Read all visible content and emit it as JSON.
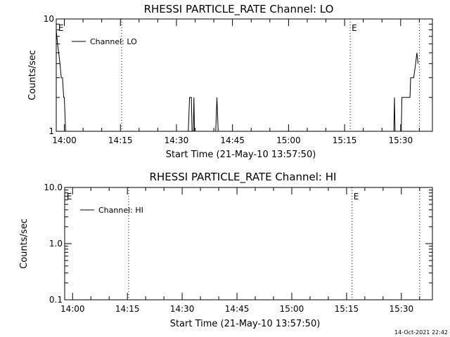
{
  "footer": {
    "timestamp": "14-Oct-2021 22:42"
  },
  "chart_data": [
    {
      "type": "line",
      "title": "RHESSI PARTICLE_RATE Channel: LO",
      "xlabel": "Start Time (21-May-10 13:57:50)",
      "ylabel": "Counts/sec",
      "y_scale": "log",
      "ylim": [
        1,
        10
      ],
      "y_ticks": [
        1,
        10
      ],
      "y_tick_labels": [
        "1",
        "10"
      ],
      "xlim": [
        "13:57:50",
        "15:38:30"
      ],
      "x_ticks": [
        "14:00",
        "14:15",
        "14:30",
        "14:45",
        "15:00",
        "15:15",
        "15:30"
      ],
      "legend": {
        "position": "top-left",
        "entries": [
          "Channel: LO"
        ]
      },
      "vertical_markers": [
        {
          "time": "13:58:00",
          "label": "E",
          "line": false
        },
        {
          "time": "14:15:20",
          "label": "",
          "line": true
        },
        {
          "time": "15:16:30",
          "label": "E",
          "line": true
        },
        {
          "time": "15:35:00",
          "label": "",
          "line": true
        }
      ],
      "series": [
        {
          "name": "Channel: LO",
          "points": [
            [
              "13:57:50",
              8
            ],
            [
              "13:58:10",
              6
            ],
            [
              "13:58:30",
              5
            ],
            [
              "13:58:50",
              4
            ],
            [
              "13:59:10",
              3
            ],
            [
              "13:59:30",
              3
            ],
            [
              "13:59:50",
              2
            ],
            [
              "14:00:00",
              2
            ],
            [
              "14:00:20",
              1
            ],
            [
              "14:33:10",
              1
            ],
            [
              "14:33:30",
              2
            ],
            [
              "14:34:00",
              2
            ],
            [
              "14:34:10",
              1
            ],
            [
              "14:34:30",
              1
            ],
            [
              "14:34:40",
              2
            ],
            [
              "14:34:50",
              1
            ],
            [
              "14:40:30",
              1
            ],
            [
              "14:40:50",
              2
            ],
            [
              "14:41:10",
              1
            ],
            [
              "15:28:10",
              1
            ],
            [
              "15:28:20",
              2
            ],
            [
              "15:28:30",
              1
            ],
            [
              "15:30:10",
              1
            ],
            [
              "15:30:20",
              2
            ],
            [
              "15:32:30",
              2
            ],
            [
              "15:32:40",
              3
            ],
            [
              "15:33:30",
              3
            ],
            [
              "15:34:00",
              4
            ],
            [
              "15:34:20",
              5
            ],
            [
              "15:34:40",
              4
            ]
          ]
        }
      ]
    },
    {
      "type": "line",
      "title": "RHESSI PARTICLE_RATE Channel: HI",
      "xlabel": "Start Time (21-May-10 13:57:50)",
      "ylabel": "Counts/sec",
      "y_scale": "log",
      "ylim": [
        0.1,
        10
      ],
      "y_ticks": [
        0.1,
        1,
        10
      ],
      "y_tick_labels": [
        "0.1",
        "1.0",
        "10.0"
      ],
      "xlim": [
        "13:57:50",
        "15:38:30"
      ],
      "x_ticks": [
        "14:00",
        "14:15",
        "14:30",
        "14:45",
        "15:00",
        "15:15",
        "15:30"
      ],
      "legend": {
        "position": "top-left",
        "entries": [
          "Channel: HI"
        ]
      },
      "vertical_markers": [
        {
          "time": "13:58:00",
          "label": "E",
          "line": false
        },
        {
          "time": "14:15:20",
          "label": "",
          "line": true
        },
        {
          "time": "15:16:30",
          "label": "E",
          "line": true
        },
        {
          "time": "15:35:00",
          "label": "",
          "line": true
        }
      ],
      "series": [
        {
          "name": "Channel: HI",
          "points": []
        }
      ]
    }
  ]
}
